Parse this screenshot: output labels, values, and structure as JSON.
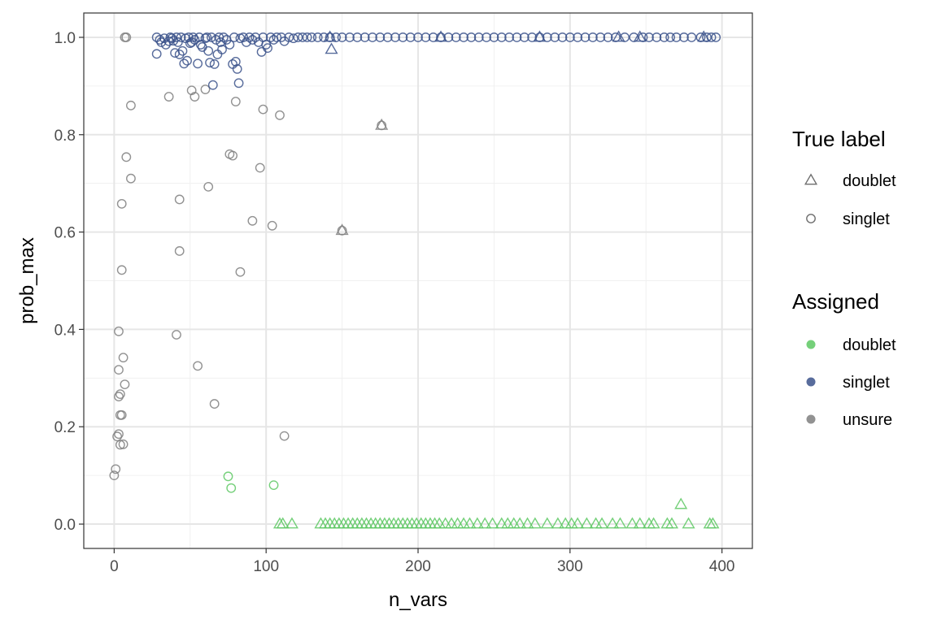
{
  "chart_data": {
    "type": "scatter",
    "xlabel": "n_vars",
    "ylabel": "prob_max",
    "xlim": [
      -20,
      420
    ],
    "ylim": [
      -0.05,
      1.05
    ],
    "x_ticks": [
      0,
      100,
      200,
      300,
      400
    ],
    "y_ticks": [
      0.0,
      0.2,
      0.4,
      0.6,
      0.8,
      1.0
    ],
    "x_tick_labels": [
      "0",
      "100",
      "200",
      "300",
      "400"
    ],
    "y_tick_labels": [
      "0.0",
      "0.2",
      "0.4",
      "0.6",
      "0.8",
      "1.0"
    ],
    "grid": true,
    "legend_position": "right",
    "legend": {
      "shape": {
        "title": "True label",
        "entries": [
          {
            "label": "doublet",
            "shape": "triangle"
          },
          {
            "label": "singlet",
            "shape": "circle"
          }
        ]
      },
      "color": {
        "title": "Assigned",
        "entries": [
          {
            "label": "doublet",
            "color": "#5dc863"
          },
          {
            "label": "singlet",
            "color": "#3b528b"
          },
          {
            "label": "unsure",
            "color": "#7f7f7f"
          }
        ]
      }
    },
    "colors": {
      "doublet": "#5dc863",
      "singlet": "#3b528b",
      "unsure": "#7f7f7f"
    },
    "series": [
      {
        "true_label": "singlet",
        "assigned": "unsure",
        "shape": "circle",
        "points": [
          [
            0,
            0.1
          ],
          [
            1,
            0.113
          ],
          [
            2,
            0.18
          ],
          [
            3,
            0.185
          ],
          [
            4,
            0.163
          ],
          [
            6,
            0.164
          ],
          [
            4,
            0.224
          ],
          [
            5,
            0.224
          ],
          [
            3,
            0.262
          ],
          [
            4,
            0.267
          ],
          [
            7,
            0.287
          ],
          [
            3,
            0.317
          ],
          [
            6,
            0.342
          ],
          [
            3,
            0.396
          ],
          [
            5,
            0.522
          ],
          [
            5,
            0.658
          ],
          [
            8,
            0.754
          ],
          [
            11,
            0.71
          ],
          [
            11,
            0.86
          ],
          [
            7,
            1.0
          ],
          [
            8,
            1.0
          ],
          [
            36,
            0.878
          ],
          [
            41,
            0.389
          ],
          [
            43,
            0.667
          ],
          [
            43,
            0.561
          ],
          [
            51,
            0.891
          ],
          [
            53,
            0.878
          ],
          [
            55,
            0.325
          ],
          [
            60,
            0.893
          ],
          [
            62,
            0.693
          ],
          [
            66,
            0.247
          ],
          [
            76,
            0.76
          ],
          [
            78,
            0.757
          ],
          [
            80,
            0.868
          ],
          [
            83,
            0.518
          ],
          [
            91,
            0.623
          ],
          [
            96,
            0.732
          ],
          [
            98,
            0.852
          ],
          [
            104,
            0.613
          ],
          [
            109,
            0.84
          ],
          [
            112,
            0.181
          ],
          [
            150,
            0.603
          ],
          [
            176,
            0.819
          ]
        ]
      },
      {
        "true_label": "doublet",
        "assigned": "unsure",
        "shape": "triangle",
        "points": [
          [
            150,
            0.603
          ],
          [
            176,
            0.819
          ]
        ]
      },
      {
        "true_label": "singlet",
        "assigned": "doublet",
        "shape": "circle",
        "points": [
          [
            75,
            0.098
          ],
          [
            77,
            0.074
          ],
          [
            105,
            0.08
          ]
        ]
      },
      {
        "true_label": "doublet",
        "assigned": "doublet",
        "shape": "triangle",
        "points": [
          [
            109,
            0.0
          ],
          [
            111,
            0.0
          ],
          [
            117,
            0.0
          ],
          [
            136,
            0.0
          ],
          [
            139,
            0.0
          ],
          [
            142,
            0.0
          ],
          [
            145,
            0.0
          ],
          [
            148,
            0.0
          ],
          [
            151,
            0.0
          ],
          [
            154,
            0.0
          ],
          [
            157,
            0.0
          ],
          [
            160,
            0.0
          ],
          [
            163,
            0.0
          ],
          [
            166,
            0.0
          ],
          [
            169,
            0.0
          ],
          [
            172,
            0.0
          ],
          [
            175,
            0.0
          ],
          [
            178,
            0.0
          ],
          [
            181,
            0.0
          ],
          [
            184,
            0.0
          ],
          [
            187,
            0.0
          ],
          [
            190,
            0.0
          ],
          [
            193,
            0.0
          ],
          [
            196,
            0.0
          ],
          [
            199,
            0.0
          ],
          [
            202,
            0.0
          ],
          [
            205,
            0.0
          ],
          [
            208,
            0.0
          ],
          [
            211,
            0.0
          ],
          [
            214,
            0.0
          ],
          [
            218,
            0.0
          ],
          [
            222,
            0.0
          ],
          [
            226,
            0.0
          ],
          [
            230,
            0.0
          ],
          [
            234,
            0.0
          ],
          [
            239,
            0.0
          ],
          [
            244,
            0.0
          ],
          [
            249,
            0.0
          ],
          [
            255,
            0.0
          ],
          [
            259,
            0.0
          ],
          [
            263,
            0.0
          ],
          [
            267,
            0.0
          ],
          [
            272,
            0.0
          ],
          [
            277,
            0.0
          ],
          [
            285,
            0.0
          ],
          [
            292,
            0.0
          ],
          [
            297,
            0.0
          ],
          [
            301,
            0.0
          ],
          [
            305,
            0.0
          ],
          [
            311,
            0.0
          ],
          [
            317,
            0.0
          ],
          [
            321,
            0.0
          ],
          [
            328,
            0.0
          ],
          [
            333,
            0.0
          ],
          [
            341,
            0.0
          ],
          [
            346,
            0.0
          ],
          [
            352,
            0.0
          ],
          [
            355,
            0.0
          ],
          [
            364,
            0.0
          ],
          [
            367,
            0.0
          ],
          [
            373,
            0.04
          ],
          [
            378,
            0.0
          ],
          [
            392,
            0.0
          ],
          [
            394,
            0.0
          ]
        ]
      },
      {
        "true_label": "doublet",
        "assigned": "singlet",
        "shape": "triangle",
        "points": [
          [
            143,
            0.975
          ],
          [
            142,
            1.0
          ],
          [
            215,
            1.0
          ],
          [
            280,
            1.0
          ],
          [
            332,
            1.0
          ],
          [
            346,
            1.0
          ],
          [
            388,
            1.0
          ]
        ]
      },
      {
        "true_label": "singlet",
        "assigned": "singlet",
        "shape": "circle",
        "points": [
          [
            28,
            0.966
          ],
          [
            28,
            1.0
          ],
          [
            30,
            0.995
          ],
          [
            31,
            0.99
          ],
          [
            33,
            0.998
          ],
          [
            34,
            0.985
          ],
          [
            36,
            0.992
          ],
          [
            37,
            1.0
          ],
          [
            38,
            0.998
          ],
          [
            39,
            0.993
          ],
          [
            40,
            0.968
          ],
          [
            41,
            1.0
          ],
          [
            42,
            0.99
          ],
          [
            43,
            0.965
          ],
          [
            44,
            1.0
          ],
          [
            45,
            0.972
          ],
          [
            46,
            0.946
          ],
          [
            47,
            0.998
          ],
          [
            48,
            0.952
          ],
          [
            49,
            1.0
          ],
          [
            50,
            0.988
          ],
          [
            51,
            0.99
          ],
          [
            52,
            1.0
          ],
          [
            53,
            0.995
          ],
          [
            55,
            0.946
          ],
          [
            56,
            1.0
          ],
          [
            57,
            0.985
          ],
          [
            58,
            0.98
          ],
          [
            60,
            0.998
          ],
          [
            61,
            1.0
          ],
          [
            62,
            0.972
          ],
          [
            63,
            0.948
          ],
          [
            64,
            1.0
          ],
          [
            65,
            0.902
          ],
          [
            66,
            0.945
          ],
          [
            67,
            0.995
          ],
          [
            68,
            0.965
          ],
          [
            69,
            1.0
          ],
          [
            70,
            0.99
          ],
          [
            71,
            0.975
          ],
          [
            72,
            1.0
          ],
          [
            74,
            0.995
          ],
          [
            76,
            0.985
          ],
          [
            78,
            0.945
          ],
          [
            79,
            1.0
          ],
          [
            80,
            0.95
          ],
          [
            81,
            0.935
          ],
          [
            82,
            0.906
          ],
          [
            83,
            0.998
          ],
          [
            85,
            1.0
          ],
          [
            87,
            0.99
          ],
          [
            89,
            1.0
          ],
          [
            91,
            0.995
          ],
          [
            93,
            1.0
          ],
          [
            95,
            0.99
          ],
          [
            97,
            0.97
          ],
          [
            98,
            1.0
          ],
          [
            100,
            0.985
          ],
          [
            101,
            0.978
          ],
          [
            103,
            1.0
          ],
          [
            105,
            0.995
          ],
          [
            107,
            1.0
          ],
          [
            110,
            1.0
          ],
          [
            112,
            0.992
          ],
          [
            115,
            1.0
          ],
          [
            118,
            0.998
          ],
          [
            121,
            1.0
          ],
          [
            124,
            1.0
          ],
          [
            127,
            1.0
          ],
          [
            130,
            1.0
          ],
          [
            134,
            1.0
          ],
          [
            138,
            1.0
          ],
          [
            142,
            1.0
          ],
          [
            146,
            1.0
          ],
          [
            150,
            1.0
          ],
          [
            155,
            1.0
          ],
          [
            160,
            1.0
          ],
          [
            165,
            1.0
          ],
          [
            170,
            1.0
          ],
          [
            175,
            1.0
          ],
          [
            180,
            1.0
          ],
          [
            185,
            1.0
          ],
          [
            190,
            1.0
          ],
          [
            195,
            1.0
          ],
          [
            200,
            1.0
          ],
          [
            205,
            1.0
          ],
          [
            210,
            1.0
          ],
          [
            215,
            1.0
          ],
          [
            220,
            1.0
          ],
          [
            225,
            1.0
          ],
          [
            230,
            1.0
          ],
          [
            235,
            1.0
          ],
          [
            240,
            1.0
          ],
          [
            245,
            1.0
          ],
          [
            250,
            1.0
          ],
          [
            255,
            1.0
          ],
          [
            260,
            1.0
          ],
          [
            265,
            1.0
          ],
          [
            270,
            1.0
          ],
          [
            275,
            1.0
          ],
          [
            280,
            1.0
          ],
          [
            285,
            1.0
          ],
          [
            290,
            1.0
          ],
          [
            295,
            1.0
          ],
          [
            300,
            1.0
          ],
          [
            305,
            1.0
          ],
          [
            310,
            1.0
          ],
          [
            315,
            1.0
          ],
          [
            320,
            1.0
          ],
          [
            325,
            1.0
          ],
          [
            330,
            1.0
          ],
          [
            336,
            1.0
          ],
          [
            342,
            1.0
          ],
          [
            348,
            1.0
          ],
          [
            352,
            1.0
          ],
          [
            357,
            1.0
          ],
          [
            362,
            1.0
          ],
          [
            366,
            1.0
          ],
          [
            370,
            1.0
          ],
          [
            375,
            1.0
          ],
          [
            380,
            1.0
          ],
          [
            386,
            1.0
          ],
          [
            390,
            1.0
          ],
          [
            393,
            1.0
          ],
          [
            396,
            1.0
          ]
        ]
      }
    ]
  }
}
